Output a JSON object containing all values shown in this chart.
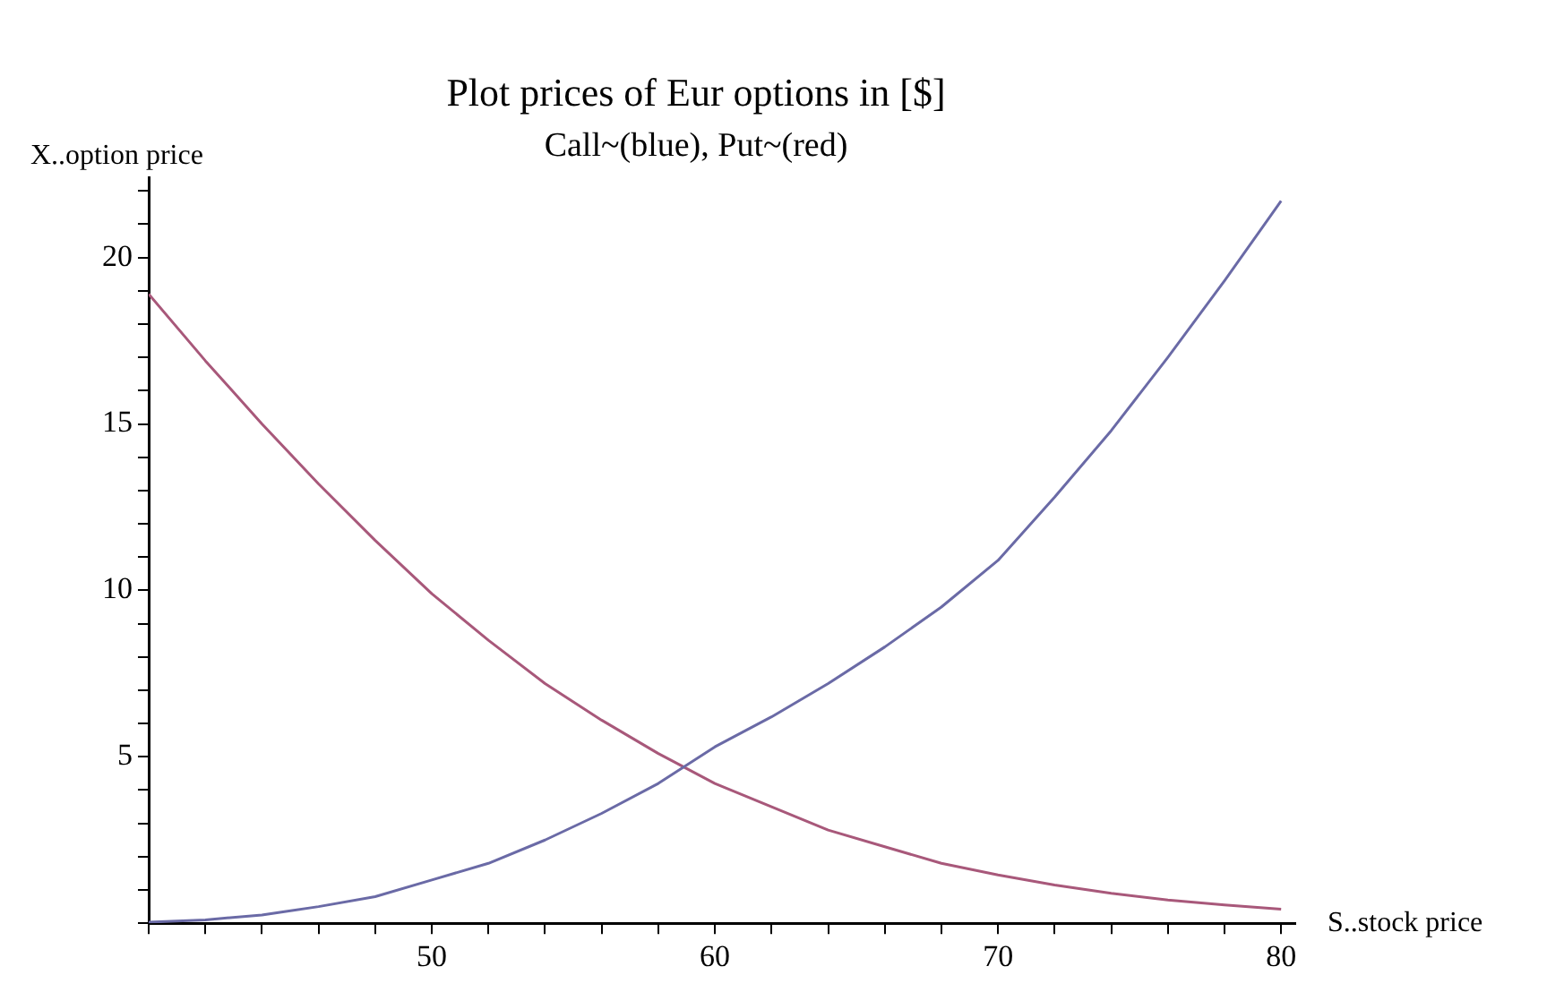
{
  "chart_data": {
    "type": "line",
    "title": "Plot prices of Eur options in [$]",
    "subtitle": "Call~(blue), Put~(red)",
    "xlabel": "S..stock price",
    "ylabel": "X..option price",
    "x": [
      40,
      42,
      44,
      46,
      48,
      50,
      52,
      54,
      56,
      58,
      60,
      62,
      64,
      66,
      68,
      70,
      72,
      74,
      76,
      78,
      80
    ],
    "series": [
      {
        "color": "#6a6aa6",
        "values": [
          0.03,
          0.1,
          0.25,
          0.5,
          0.8,
          1.3,
          1.8,
          2.5,
          3.3,
          4.2,
          5.3,
          6.2,
          7.2,
          8.3,
          9.5,
          10.9,
          12.8,
          14.8,
          17.0,
          19.3,
          21.7
        ]
      },
      {
        "color": "#a8587a",
        "values": [
          18.9,
          16.9,
          15.0,
          13.2,
          11.5,
          9.9,
          8.5,
          7.2,
          6.1,
          5.1,
          4.2,
          3.5,
          2.8,
          2.3,
          1.8,
          1.45,
          1.15,
          0.9,
          0.7,
          0.55,
          0.42
        ]
      }
    ],
    "xlim": [
      40,
      80.5
    ],
    "ylim": [
      0,
      22.4
    ],
    "xticks": [
      {
        "value": 40,
        "label": null
      },
      {
        "value": 42,
        "label": null
      },
      {
        "value": 44,
        "label": null
      },
      {
        "value": 46,
        "label": null
      },
      {
        "value": 48,
        "label": null
      },
      50,
      {
        "value": 52,
        "label": null
      },
      {
        "value": 54,
        "label": null
      },
      {
        "value": 56,
        "label": null
      },
      {
        "value": 58,
        "label": null
      },
      60,
      {
        "value": 62,
        "label": null
      },
      {
        "value": 64,
        "label": null
      },
      {
        "value": 66,
        "label": null
      },
      {
        "value": 68,
        "label": null
      },
      70,
      {
        "value": 72,
        "label": null
      },
      {
        "value": 74,
        "label": null
      },
      {
        "value": 76,
        "label": null
      },
      {
        "value": 78,
        "label": null
      },
      80
    ],
    "yticks": [
      {
        "value": 0,
        "label": null
      },
      {
        "value": 1,
        "label": null
      },
      {
        "value": 2,
        "label": null
      },
      {
        "value": 3,
        "label": null
      },
      {
        "value": 4,
        "label": null
      },
      5,
      {
        "value": 6,
        "label": null
      },
      {
        "value": 7,
        "label": null
      },
      {
        "value": 8,
        "label": null
      },
      {
        "value": 9,
        "label": null
      },
      10,
      {
        "value": 11,
        "label": null
      },
      {
        "value": 12,
        "label": null
      },
      {
        "value": 13,
        "label": null
      },
      {
        "value": 14,
        "label": null
      },
      15,
      {
        "value": 16,
        "label": null
      },
      {
        "value": 17,
        "label": null
      },
      {
        "value": 18,
        "label": null
      },
      {
        "value": 19,
        "label": null
      },
      20,
      {
        "value": 21,
        "label": null
      },
      {
        "value": 22,
        "label": null
      }
    ],
    "grid": false,
    "legend": false,
    "marker": "none",
    "line_style": "solid"
  }
}
